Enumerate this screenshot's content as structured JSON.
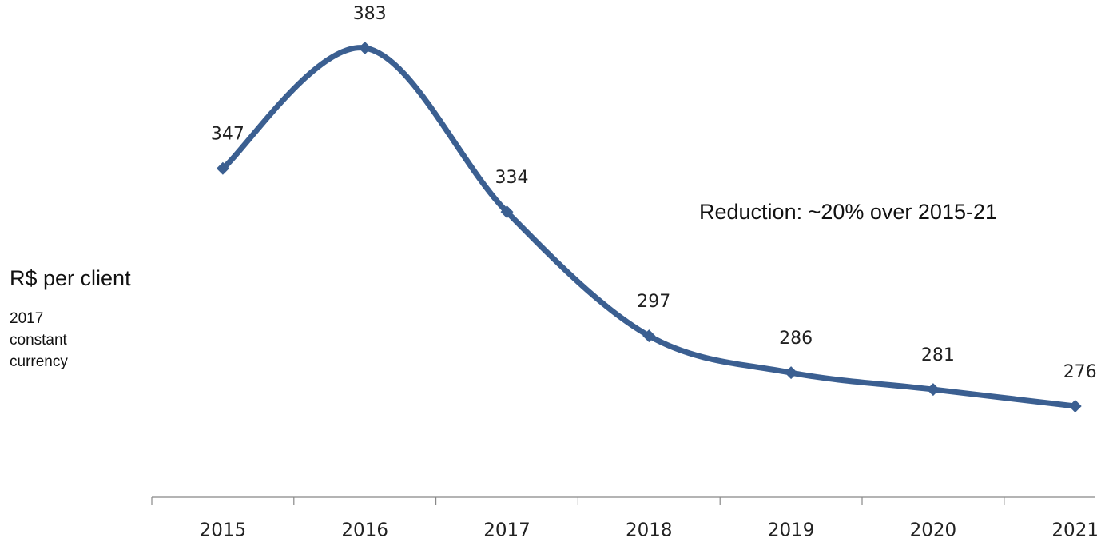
{
  "chart_data": {
    "type": "line",
    "categories": [
      "2015",
      "2016",
      "2017",
      "2018",
      "2019",
      "2020",
      "2021"
    ],
    "values": [
      347,
      383,
      334,
      297,
      286,
      281,
      276
    ],
    "color": "#3b5f91",
    "y_label": "R$ per client",
    "y_label_note": "2017 constant currency",
    "annotation": "Reduction: ~20% over 2015-21",
    "smooth": true,
    "markers": "diamond"
  }
}
